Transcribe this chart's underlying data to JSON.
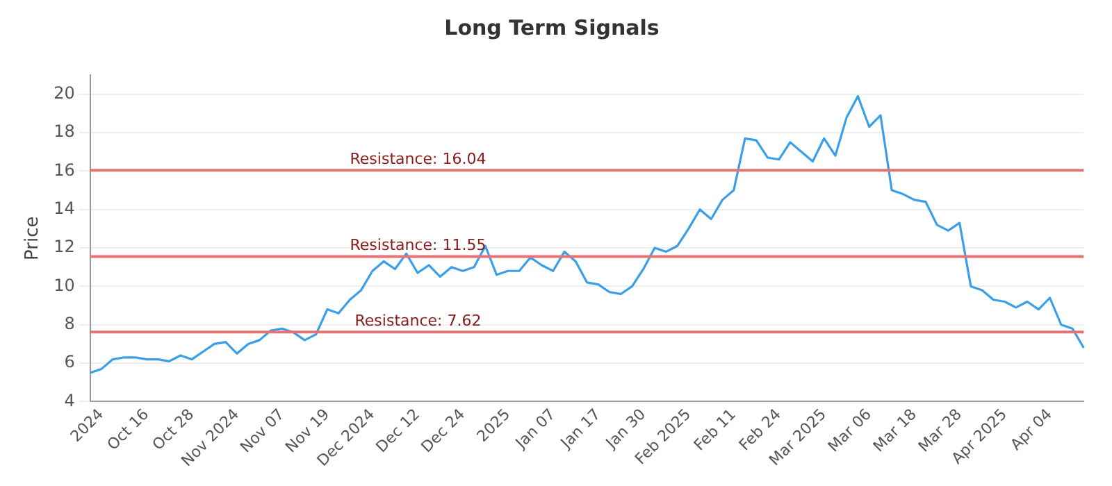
{
  "chart_data": {
    "type": "line",
    "title": "Long Term Signals",
    "ylabel": "Price",
    "categories": [
      null,
      "2024",
      null,
      null,
      null,
      "Oct 16",
      null,
      null,
      null,
      "Oct 28",
      null,
      null,
      null,
      "Nov 2024",
      null,
      null,
      null,
      "Nov 07",
      null,
      null,
      null,
      "Nov 19",
      null,
      null,
      null,
      "Dec 2024",
      null,
      null,
      null,
      "Dec 12",
      null,
      null,
      null,
      "Dec 24",
      null,
      null,
      null,
      "2025",
      null,
      null,
      null,
      "Jan 07",
      null,
      null,
      null,
      "Jan 17",
      null,
      null,
      null,
      "Jan 30",
      null,
      null,
      null,
      "Feb 2025",
      null,
      null,
      null,
      "Feb 11",
      null,
      null,
      null,
      "Feb 24",
      null,
      null,
      null,
      "Mar 2025",
      null,
      null,
      null,
      "Mar 06",
      null,
      null,
      null,
      "Mar 18",
      null,
      null,
      null,
      "Mar 28",
      null,
      null,
      null,
      "Apr 2025",
      null,
      null,
      null,
      "Apr 04",
      null,
      null,
      null
    ],
    "series": [
      {
        "color": "#3a9ee8",
        "values": [
          5.5,
          5.7,
          6.2,
          6.3,
          6.3,
          6.2,
          6.2,
          6.1,
          6.4,
          6.2,
          6.6,
          7.0,
          7.1,
          6.5,
          7.0,
          7.2,
          7.7,
          7.8,
          7.6,
          7.2,
          7.5,
          8.8,
          8.6,
          9.3,
          9.8,
          10.8,
          11.3,
          10.9,
          11.7,
          10.7,
          11.1,
          10.5,
          11.0,
          10.8,
          11.0,
          12.1,
          10.6,
          10.8,
          10.8,
          11.5,
          11.1,
          10.8,
          11.8,
          11.3,
          10.2,
          10.1,
          9.7,
          9.6,
          10.0,
          10.9,
          12.0,
          11.8,
          12.1,
          13.0,
          14.0,
          13.5,
          14.5,
          15.0,
          17.7,
          17.6,
          16.7,
          16.6,
          17.5,
          17.0,
          16.5,
          17.7,
          16.8,
          18.8,
          19.9,
          18.3,
          18.9,
          15.0,
          14.8,
          14.5,
          14.4,
          13.2,
          12.9,
          13.3,
          10.0,
          9.8,
          9.3,
          9.2,
          8.9,
          9.2,
          8.8,
          9.4,
          8.0,
          7.8,
          6.8
        ]
      }
    ],
    "ylim": [
      4,
      21
    ],
    "yticks": [
      4,
      6,
      8,
      10,
      12,
      14,
      16,
      18,
      20
    ],
    "grid": "y",
    "legend": false,
    "marker": "none",
    "line_style": "solid",
    "ref_lines": [
      {
        "axis": "y",
        "value": 16.04,
        "label": "Resistance: 16.04",
        "color": "#e57373"
      },
      {
        "axis": "y",
        "value": 11.55,
        "label": "Resistance: 11.55",
        "color": "#e57373"
      },
      {
        "axis": "y",
        "value": 7.62,
        "label": "Resistance: 7.62",
        "color": "#e57373"
      }
    ]
  }
}
